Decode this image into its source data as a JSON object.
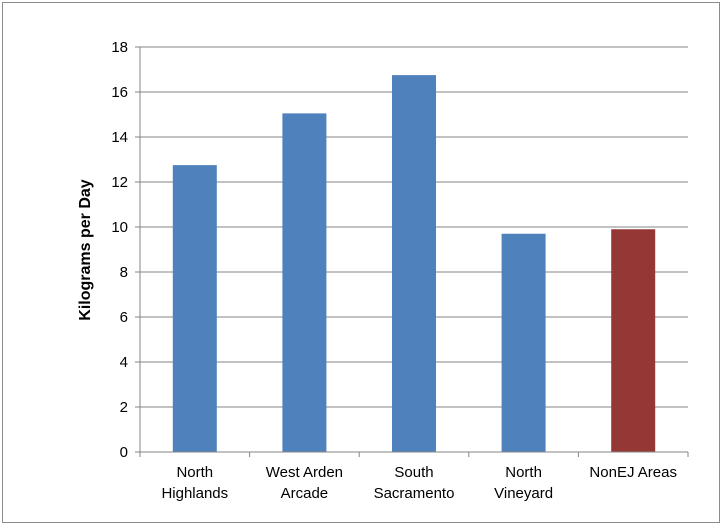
{
  "chart_data": {
    "type": "bar",
    "title": "",
    "xlabel": "",
    "ylabel": "Kilograms per Day",
    "ylim": [
      0,
      18
    ],
    "yticks": [
      0,
      2,
      4,
      6,
      8,
      10,
      12,
      14,
      16,
      18
    ],
    "grid": true,
    "legend": "none",
    "categories": [
      [
        "North",
        "Highlands"
      ],
      [
        "West Arden",
        "Arcade"
      ],
      [
        "South",
        "Sacramento"
      ],
      [
        "North",
        "Vineyard"
      ],
      [
        "NonEJ Areas"
      ]
    ],
    "values": [
      12.75,
      15.05,
      16.75,
      9.7,
      9.9
    ],
    "colors": [
      "#4f81bd",
      "#4f81bd",
      "#4f81bd",
      "#4f81bd",
      "#953735"
    ]
  }
}
